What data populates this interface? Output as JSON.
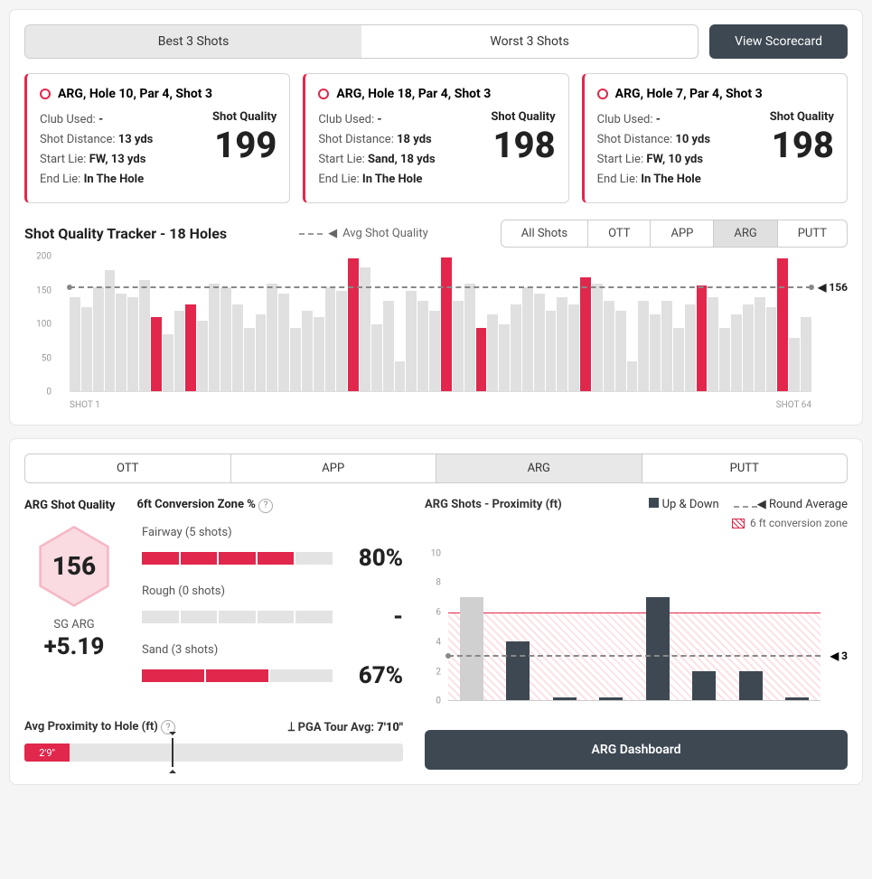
{
  "colors": {
    "accent": "#e1274c",
    "dark": "#3d4852",
    "muted": "#e0e0e0"
  },
  "topTabs": {
    "best": "Best 3 Shots",
    "worst": "Worst 3 Shots",
    "active": "best"
  },
  "scorecardBtn": "View Scorecard",
  "shotCards": [
    {
      "title": "ARG, Hole 10, Par 4, Shot 3",
      "club": "-",
      "dist": "13 yds",
      "start": "FW, 13 yds",
      "end": "In The Hole",
      "sq": "199"
    },
    {
      "title": "ARG, Hole 18, Par 4, Shot 3",
      "club": "-",
      "dist": "18 yds",
      "start": "Sand, 18 yds",
      "end": "In The Hole",
      "sq": "198"
    },
    {
      "title": "ARG, Hole 7, Par 4, Shot 3",
      "club": "-",
      "dist": "10 yds",
      "start": "FW, 10 yds",
      "end": "In The Hole",
      "sq": "198"
    }
  ],
  "labels": {
    "club": "Club Used: ",
    "dist": "Shot Distance: ",
    "start": "Start Lie: ",
    "end": "End Lie: ",
    "sq": "Shot Quality"
  },
  "tracker": {
    "title": "Shot Quality Tracker - 18 Holes",
    "avgLegend": "Avg Shot Quality",
    "filters": [
      "All Shots",
      "OTT",
      "APP",
      "ARG",
      "PUTT"
    ],
    "activeFilter": "ARG",
    "ylim": [
      0,
      200
    ],
    "yticks": [
      0,
      50,
      100,
      150,
      200
    ],
    "avgLine": 156,
    "xLabels": [
      "SHOT 1",
      "SHOT 64"
    ],
    "bars": [
      {
        "v": 140,
        "hi": false
      },
      {
        "v": 125,
        "hi": false
      },
      {
        "v": 155,
        "hi": false
      },
      {
        "v": 180,
        "hi": false
      },
      {
        "v": 145,
        "hi": false
      },
      {
        "v": 140,
        "hi": false
      },
      {
        "v": 165,
        "hi": false
      },
      {
        "v": 110,
        "hi": true
      },
      {
        "v": 85,
        "hi": false
      },
      {
        "v": 120,
        "hi": false
      },
      {
        "v": 130,
        "hi": true
      },
      {
        "v": 105,
        "hi": false
      },
      {
        "v": 160,
        "hi": false
      },
      {
        "v": 155,
        "hi": false
      },
      {
        "v": 130,
        "hi": false
      },
      {
        "v": 95,
        "hi": false
      },
      {
        "v": 115,
        "hi": false
      },
      {
        "v": 160,
        "hi": false
      },
      {
        "v": 145,
        "hi": false
      },
      {
        "v": 95,
        "hi": false
      },
      {
        "v": 120,
        "hi": false
      },
      {
        "v": 110,
        "hi": false
      },
      {
        "v": 155,
        "hi": false
      },
      {
        "v": 150,
        "hi": false
      },
      {
        "v": 198,
        "hi": true
      },
      {
        "v": 185,
        "hi": false
      },
      {
        "v": 100,
        "hi": false
      },
      {
        "v": 135,
        "hi": false
      },
      {
        "v": 45,
        "hi": false
      },
      {
        "v": 150,
        "hi": false
      },
      {
        "v": 135,
        "hi": false
      },
      {
        "v": 120,
        "hi": false
      },
      {
        "v": 199,
        "hi": true
      },
      {
        "v": 135,
        "hi": false
      },
      {
        "v": 160,
        "hi": false
      },
      {
        "v": 94,
        "hi": true
      },
      {
        "v": 115,
        "hi": false
      },
      {
        "v": 100,
        "hi": false
      },
      {
        "v": 130,
        "hi": false
      },
      {
        "v": 155,
        "hi": false
      },
      {
        "v": 145,
        "hi": false
      },
      {
        "v": 120,
        "hi": false
      },
      {
        "v": 140,
        "hi": false
      },
      {
        "v": 130,
        "hi": false
      },
      {
        "v": 170,
        "hi": true
      },
      {
        "v": 160,
        "hi": false
      },
      {
        "v": 135,
        "hi": false
      },
      {
        "v": 120,
        "hi": false
      },
      {
        "v": 45,
        "hi": false
      },
      {
        "v": 135,
        "hi": false
      },
      {
        "v": 115,
        "hi": false
      },
      {
        "v": 135,
        "hi": false
      },
      {
        "v": 95,
        "hi": false
      },
      {
        "v": 130,
        "hi": false
      },
      {
        "v": 157,
        "hi": true
      },
      {
        "v": 140,
        "hi": false
      },
      {
        "v": 95,
        "hi": false
      },
      {
        "v": 115,
        "hi": false
      },
      {
        "v": 130,
        "hi": false
      },
      {
        "v": 140,
        "hi": false
      },
      {
        "v": 125,
        "hi": false
      },
      {
        "v": 198,
        "hi": true
      },
      {
        "v": 80,
        "hi": false
      },
      {
        "v": 110,
        "hi": false
      }
    ]
  },
  "catTabs": {
    "list": [
      "OTT",
      "APP",
      "ARG",
      "PUTT"
    ],
    "active": "ARG"
  },
  "arg": {
    "sqTitle": "ARG Shot Quality",
    "convTitle": "6ft Conversion Zone %",
    "hex": "156",
    "sgLabel": "SG ARG",
    "sgVal": "+5.19",
    "conv": [
      {
        "label": "Fairway (5 shots)",
        "pct": "80%",
        "fill": 4,
        "total": 5
      },
      {
        "label": "Rough (0 shots)",
        "pct": "-",
        "fill": 0,
        "total": 5
      },
      {
        "label": "Sand (3 shots)",
        "pct": "67%",
        "fill": 2,
        "total": 3
      }
    ],
    "proxLabel": "Avg Proximity to Hole (ft)",
    "pgaLabel": "PGA Tour Avg:",
    "pgaVal": "7'10\"",
    "proxVal": "2'9\"",
    "proxFillPct": 12,
    "proxMarkPct": 39
  },
  "proxChart": {
    "title": "ARG Shots - Proximity (ft)",
    "legendUp": "Up & Down",
    "legendAvg": "Round Average",
    "legendZone": "6 ft conversion zone",
    "ylim": [
      0,
      11
    ],
    "yticks": [
      0,
      2,
      4,
      6,
      8,
      10
    ],
    "zoneMax": 6,
    "avg": 3,
    "bars": [
      {
        "v": 7,
        "grey": true
      },
      {
        "v": 4,
        "grey": false
      },
      {
        "v": 0.2,
        "grey": false
      },
      {
        "v": 0.2,
        "grey": false
      },
      {
        "v": 7,
        "grey": false
      },
      {
        "v": 2,
        "grey": false
      },
      {
        "v": 2,
        "grey": false
      },
      {
        "v": 0.2,
        "grey": false
      }
    ],
    "btn": "ARG Dashboard"
  }
}
